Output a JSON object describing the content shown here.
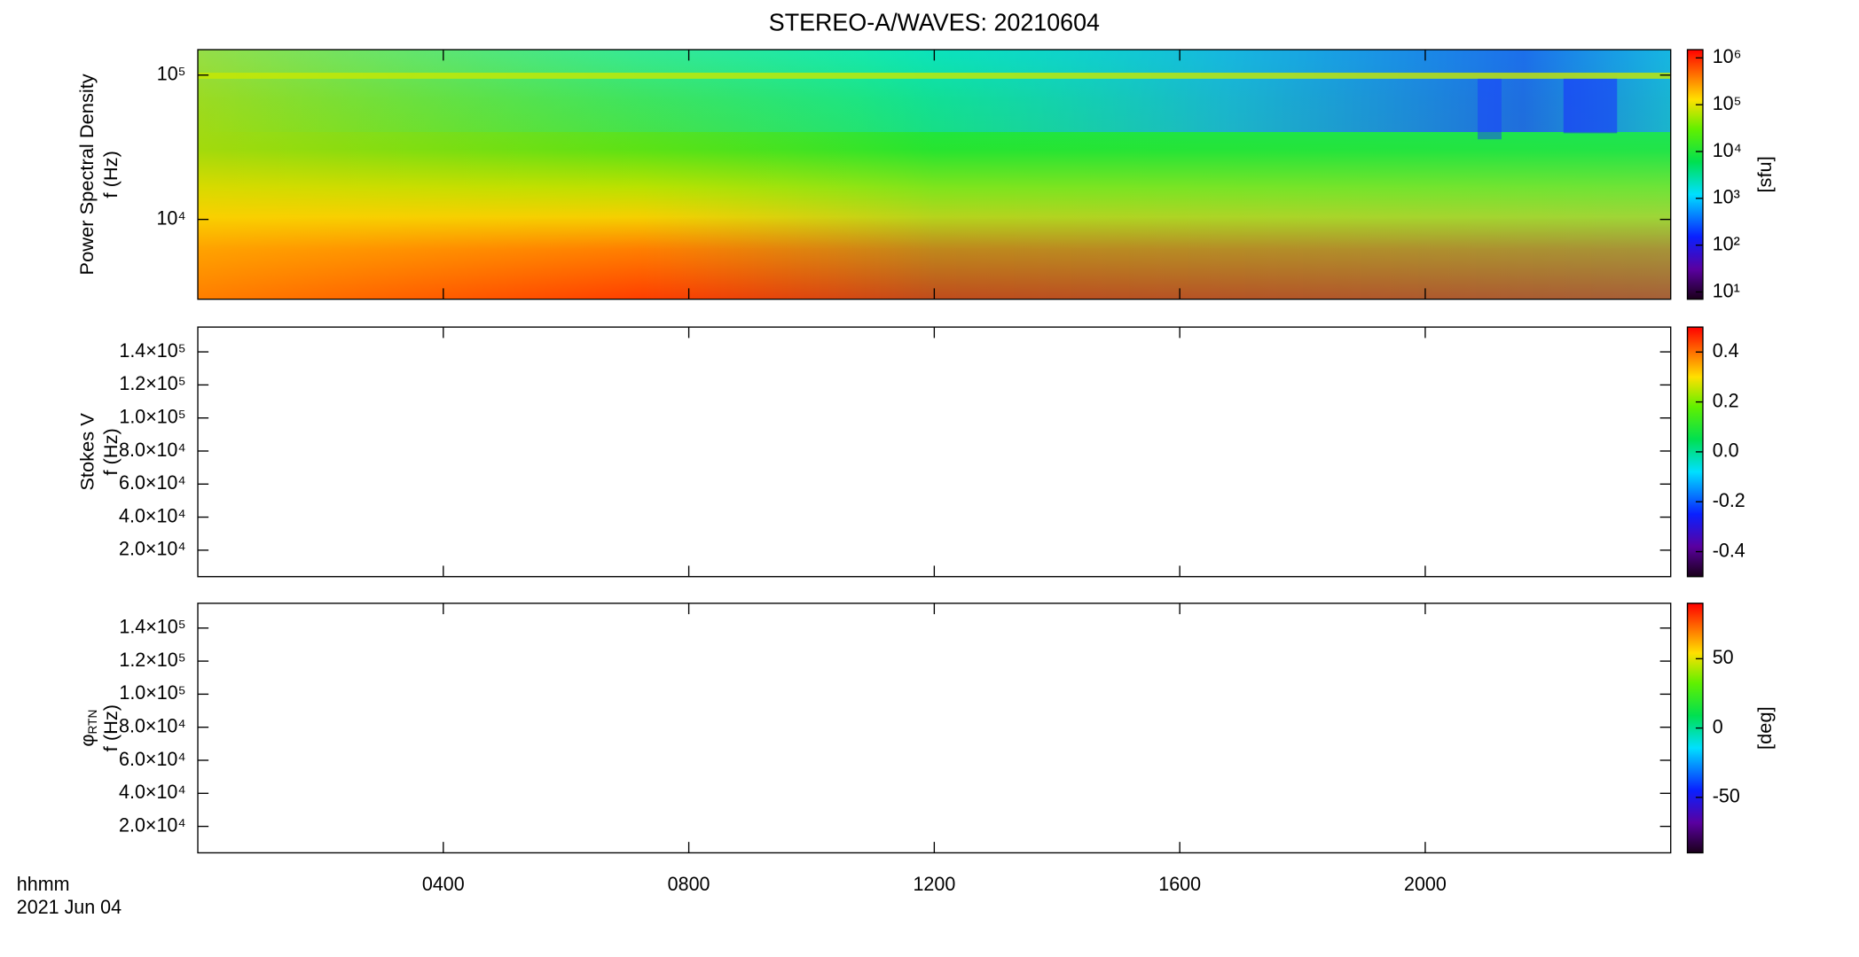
{
  "title": "STEREO-A/WAVES: 20210604",
  "x_label": "hhmm",
  "x_date": "2021 Jun 04",
  "chart_data": [
    {
      "type": "spectrogram",
      "ylabel": [
        "Power Spectral Density",
        "f (Hz)"
      ],
      "ylog": true,
      "ylim": [
        2800,
        150000
      ],
      "yticks": [
        {
          "value": 10000,
          "label": "10⁴"
        },
        {
          "value": 100000,
          "label": "10⁵"
        }
      ],
      "xlim": [
        0,
        24
      ],
      "xticks": [
        {
          "value": 4,
          "label": "0400"
        },
        {
          "value": 8,
          "label": "0800"
        },
        {
          "value": 12,
          "label": "1200"
        },
        {
          "value": 16,
          "label": "1600"
        },
        {
          "value": 20,
          "label": "2000"
        }
      ],
      "colorbar": {
        "log": true,
        "lim": [
          7,
          1500000
        ],
        "ticks": [
          {
            "value": 10,
            "label": "10¹"
          },
          {
            "value": 100,
            "label": "10²"
          },
          {
            "value": 1000,
            "label": "10³"
          },
          {
            "value": 10000,
            "label": "10⁴"
          },
          {
            "value": 100000,
            "label": "10⁵"
          },
          {
            "value": 1000000,
            "label": "10⁶"
          }
        ],
        "label": "[sfu]"
      }
    },
    {
      "type": "spectrogram",
      "ylabel_symbol": "Stokes V",
      "ylabel": [
        "f (Hz)"
      ],
      "ylog": false,
      "ylim": [
        4000,
        155000
      ],
      "yticks": [
        {
          "value": 20000,
          "label": "2.0×10⁴"
        },
        {
          "value": 40000,
          "label": "4.0×10⁴"
        },
        {
          "value": 60000,
          "label": "6.0×10⁴"
        },
        {
          "value": 80000,
          "label": "8.0×10⁴"
        },
        {
          "value": 100000,
          "label": "1.0×10⁵"
        },
        {
          "value": 120000,
          "label": "1.2×10⁵"
        },
        {
          "value": 140000,
          "label": "1.4×10⁵"
        }
      ],
      "xlim": [
        0,
        24
      ],
      "xticks": [
        4,
        8,
        12,
        16,
        20
      ],
      "colorbar": {
        "log": false,
        "lim": [
          -0.5,
          0.5
        ],
        "ticks": [
          {
            "value": -0.4,
            "label": "-0.4"
          },
          {
            "value": -0.2,
            "label": "-0.2"
          },
          {
            "value": 0,
            "label": "0.0"
          },
          {
            "value": 0.2,
            "label": "0.2"
          },
          {
            "value": 0.4,
            "label": "0.4"
          }
        ]
      }
    },
    {
      "type": "spectrogram",
      "ylabel_symbol": "φ",
      "ylabel_subscript": "RTN",
      "ylabel": [
        "f (Hz)"
      ],
      "ylog": false,
      "ylim": [
        4000,
        155000
      ],
      "yticks": [
        {
          "value": 20000,
          "label": "2.0×10⁴"
        },
        {
          "value": 40000,
          "label": "4.0×10⁴"
        },
        {
          "value": 60000,
          "label": "6.0×10⁴"
        },
        {
          "value": 80000,
          "label": "8.0×10⁴"
        },
        {
          "value": 100000,
          "label": "1.0×10⁵"
        },
        {
          "value": 120000,
          "label": "1.2×10⁵"
        },
        {
          "value": 140000,
          "label": "1.4×10⁵"
        }
      ],
      "xlim": [
        0,
        24
      ],
      "xticks": [
        4,
        8,
        12,
        16,
        20
      ],
      "colorbar": {
        "log": false,
        "lim": [
          -90,
          90
        ],
        "ticks": [
          -50,
          0,
          50
        ],
        "label": "[deg]"
      }
    }
  ]
}
